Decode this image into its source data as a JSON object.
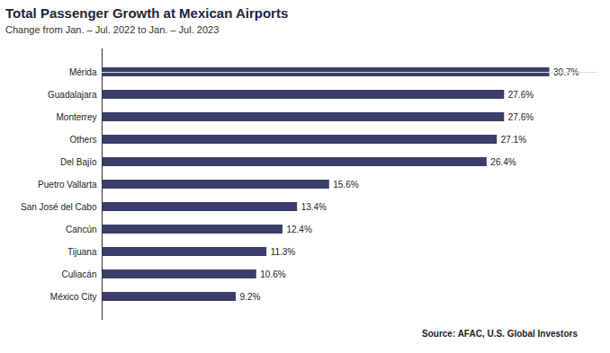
{
  "chart_data": {
    "type": "bar",
    "orientation": "horizontal",
    "title": "Total Passenger Growth at Mexican Airports",
    "subtitle": "Change from Jan. – Jul. 2022 to Jan. – Jul. 2023",
    "source": "Source: AFAC, U.S. Global Investors",
    "categories": [
      "Mérida",
      "Guadalajara",
      "Monterrey",
      "Others",
      "Del Bajío",
      "Puetro Vallarta",
      "San José del Cabo",
      "Cancún",
      "Tijuana",
      "Culiacán",
      "México City"
    ],
    "values": [
      30.7,
      27.6,
      27.6,
      27.1,
      26.4,
      15.6,
      13.4,
      12.4,
      11.3,
      10.6,
      9.2
    ],
    "value_labels": [
      "30.7%",
      "27.6%",
      "27.6%",
      "27.1%",
      "26.4%",
      "15.6%",
      "13.4%",
      "12.4%",
      "11.3%",
      "10.6%",
      "9.2%"
    ],
    "color": "#3b3d6b",
    "xlim": [
      0,
      34
    ],
    "grid": false,
    "data_labels": true,
    "tick_labels": "y"
  }
}
